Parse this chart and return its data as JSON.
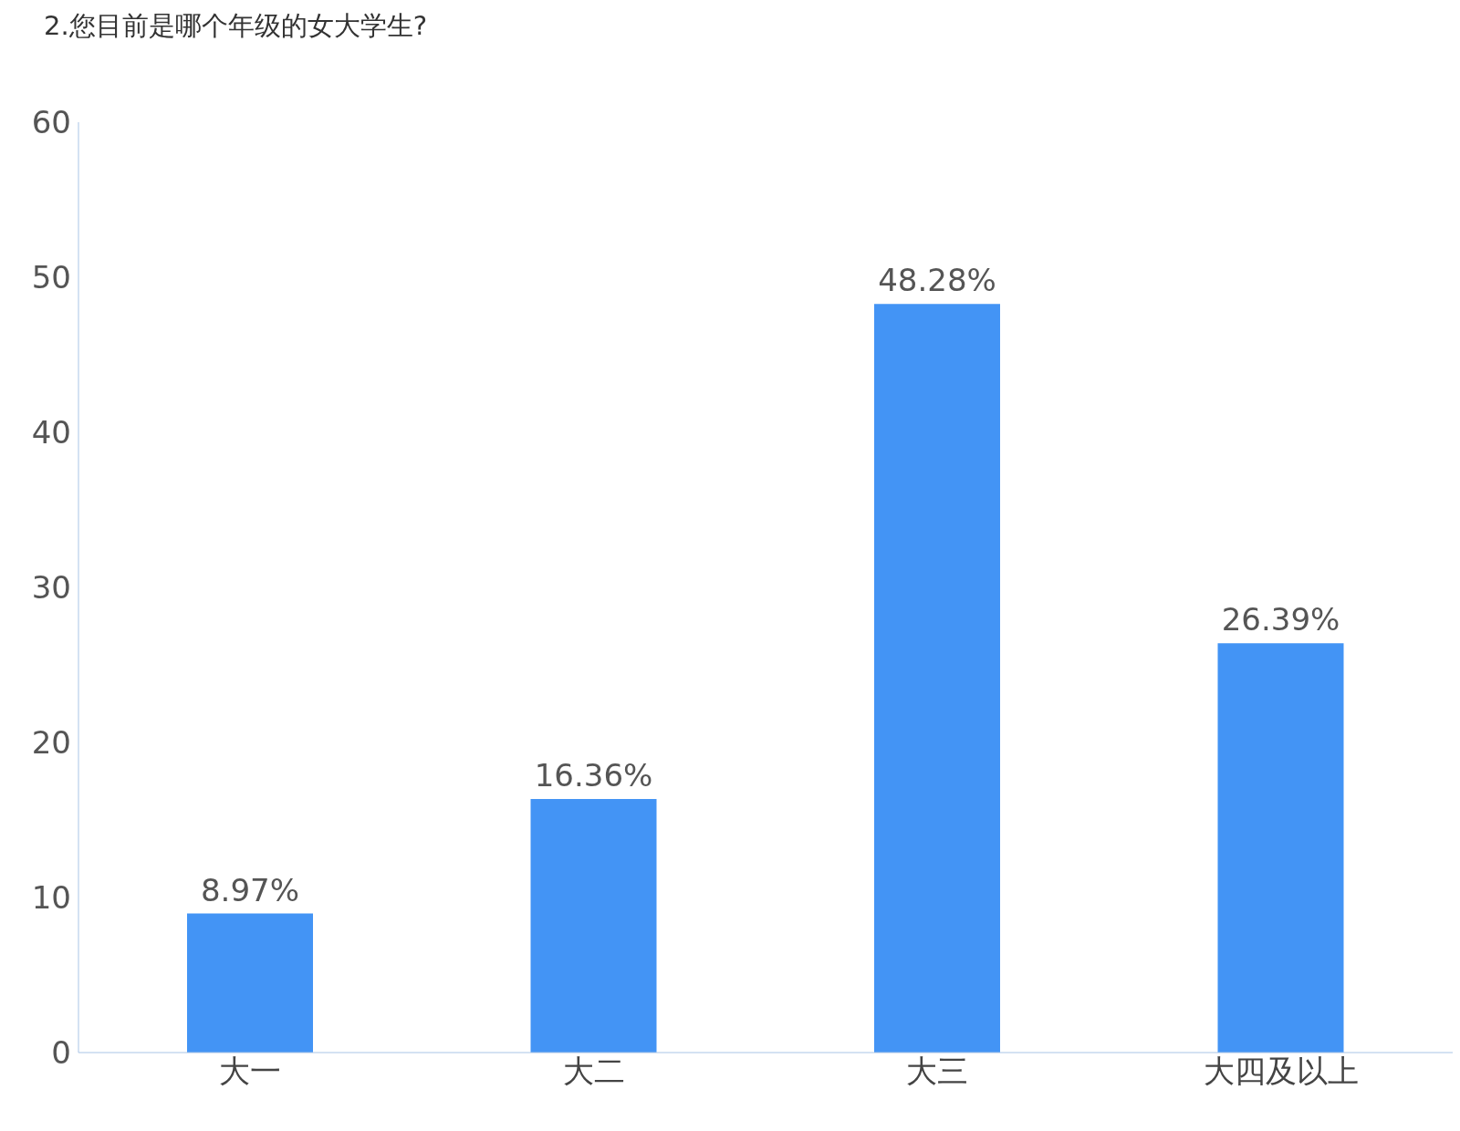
{
  "chart_data": {
    "type": "bar",
    "title": "2.您目前是哪个年级的女大学生?",
    "categories": [
      "大一",
      "大二",
      "大三",
      "大四及以上"
    ],
    "values": [
      8.97,
      16.36,
      48.28,
      26.39
    ],
    "value_labels": [
      "8.97%",
      "16.36%",
      "48.28%",
      "26.39%"
    ],
    "color": "#4394f5",
    "ylim": [
      0,
      60
    ],
    "yticks": [
      0,
      10,
      20,
      30,
      40,
      50,
      60
    ],
    "grid": false,
    "legend": false
  }
}
